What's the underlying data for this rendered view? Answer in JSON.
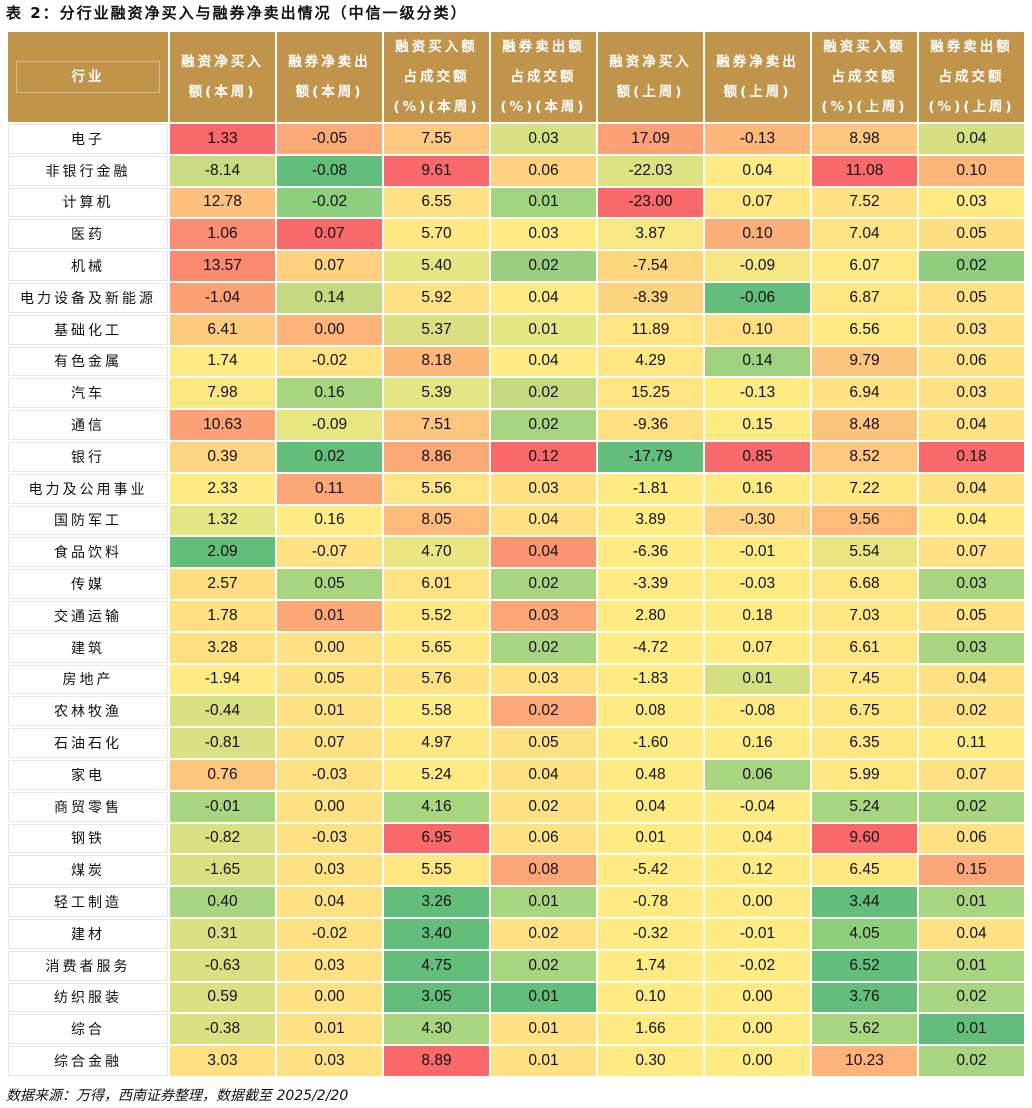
{
  "title": "表 2：分行业融资净买入与融券净卖出情况（中信一级分类）",
  "headers": [
    [
      "行业"
    ],
    [
      "融资净买入",
      "额(本周)"
    ],
    [
      "融券净卖出",
      "额(本周)"
    ],
    [
      "融资买入额",
      "占成交额",
      "(%)(本周)"
    ],
    [
      "融券卖出额",
      "占成交额",
      "(%)(本周)"
    ],
    [
      "融资净买入",
      "额(上周)"
    ],
    [
      "融券净卖出",
      "额(上周)"
    ],
    [
      "融资买入额",
      "占成交额",
      "(%)(上周)"
    ],
    [
      "融券卖出额",
      "占成交额",
      "(%)(上周)"
    ]
  ],
  "rows": [
    [
      "电子",
      "1.33",
      "-0.05",
      "7.55",
      "0.03",
      "17.09",
      "-0.13",
      "8.98",
      "0.04"
    ],
    [
      "非银行金融",
      "-8.14",
      "-0.08",
      "9.61",
      "0.06",
      "-22.03",
      "0.04",
      "11.08",
      "0.10"
    ],
    [
      "计算机",
      "12.78",
      "-0.02",
      "6.55",
      "0.01",
      "-23.00",
      "0.07",
      "7.52",
      "0.03"
    ],
    [
      "医药",
      "1.06",
      "0.07",
      "5.70",
      "0.03",
      "3.87",
      "0.10",
      "7.04",
      "0.05"
    ],
    [
      "机械",
      "13.57",
      "0.07",
      "5.40",
      "0.02",
      "-7.54",
      "-0.09",
      "6.07",
      "0.02"
    ],
    [
      "电力设备及新能源",
      "-1.04",
      "0.14",
      "5.92",
      "0.04",
      "-8.39",
      "-0.06",
      "6.87",
      "0.05"
    ],
    [
      "基础化工",
      "6.41",
      "0.00",
      "5.37",
      "0.01",
      "11.89",
      "0.10",
      "6.56",
      "0.03"
    ],
    [
      "有色金属",
      "1.74",
      "-0.02",
      "8.18",
      "0.04",
      "4.29",
      "0.14",
      "9.79",
      "0.06"
    ],
    [
      "汽车",
      "7.98",
      "0.16",
      "5.39",
      "0.02",
      "15.25",
      "-0.13",
      "6.94",
      "0.03"
    ],
    [
      "通信",
      "10.63",
      "-0.09",
      "7.51",
      "0.02",
      "-9.36",
      "0.15",
      "8.48",
      "0.04"
    ],
    [
      "银行",
      "0.39",
      "0.02",
      "8.86",
      "0.12",
      "-17.79",
      "0.85",
      "8.52",
      "0.18"
    ],
    [
      "电力及公用事业",
      "2.33",
      "0.11",
      "5.56",
      "0.03",
      "-1.81",
      "0.16",
      "7.22",
      "0.04"
    ],
    [
      "国防军工",
      "1.32",
      "0.16",
      "8.05",
      "0.04",
      "3.89",
      "-0.30",
      "9.56",
      "0.04"
    ],
    [
      "食品饮料",
      "2.09",
      "-0.07",
      "4.70",
      "0.04",
      "-6.36",
      "-0.01",
      "5.54",
      "0.07"
    ],
    [
      "传媒",
      "2.57",
      "0.05",
      "6.01",
      "0.02",
      "-3.39",
      "-0.03",
      "6.68",
      "0.03"
    ],
    [
      "交通运输",
      "1.78",
      "0.01",
      "5.52",
      "0.03",
      "2.80",
      "0.18",
      "7.03",
      "0.05"
    ],
    [
      "建筑",
      "3.28",
      "0.00",
      "5.65",
      "0.02",
      "-4.72",
      "0.07",
      "6.61",
      "0.03"
    ],
    [
      "房地产",
      "-1.94",
      "0.05",
      "5.76",
      "0.03",
      "-1.83",
      "0.01",
      "7.45",
      "0.04"
    ],
    [
      "农林牧渔",
      "-0.44",
      "0.01",
      "5.58",
      "0.02",
      "0.08",
      "-0.08",
      "6.75",
      "0.02"
    ],
    [
      "石油石化",
      "-0.81",
      "0.07",
      "4.97",
      "0.05",
      "-1.60",
      "0.16",
      "6.35",
      "0.11"
    ],
    [
      "家电",
      "0.76",
      "-0.03",
      "5.24",
      "0.04",
      "0.48",
      "0.06",
      "5.99",
      "0.07"
    ],
    [
      "商贸零售",
      "-0.01",
      "0.00",
      "4.16",
      "0.02",
      "0.04",
      "-0.04",
      "5.24",
      "0.02"
    ],
    [
      "钢铁",
      "-0.82",
      "-0.03",
      "6.95",
      "0.06",
      "0.01",
      "0.04",
      "9.60",
      "0.06"
    ],
    [
      "煤炭",
      "-1.65",
      "0.03",
      "5.55",
      "0.08",
      "-5.42",
      "0.12",
      "6.45",
      "0.15"
    ],
    [
      "轻工制造",
      "0.40",
      "0.04",
      "3.26",
      "0.01",
      "-0.78",
      "0.00",
      "3.44",
      "0.01"
    ],
    [
      "建材",
      "0.31",
      "-0.02",
      "3.40",
      "0.02",
      "-0.32",
      "-0.01",
      "4.05",
      "0.04"
    ],
    [
      "消费者服务",
      "-0.63",
      "0.03",
      "4.75",
      "0.02",
      "1.74",
      "-0.02",
      "6.52",
      "0.01"
    ],
    [
      "纺织服装",
      "0.59",
      "0.00",
      "3.05",
      "0.01",
      "0.10",
      "0.00",
      "3.76",
      "0.02"
    ],
    [
      "综合",
      "-0.38",
      "0.01",
      "4.30",
      "0.01",
      "1.66",
      "0.00",
      "5.62",
      "0.01"
    ],
    [
      "综合金融",
      "3.03",
      "0.03",
      "8.89",
      "0.01",
      "0.30",
      "0.00",
      "10.23",
      "0.02"
    ]
  ],
  "cell_colors": [
    [
      "#F8696B",
      "#FBAA77",
      "#FEC97F",
      "#D8E182",
      "#FBA175",
      "#FCB87A",
      "#FDC57D",
      "#D6E082"
    ],
    [
      "#C9DC81",
      "#63BE7B",
      "#F8696B",
      "#FDD17F",
      "#DBE282",
      "#FFEB84",
      "#F8696B",
      "#FCB67A"
    ],
    [
      "#FDC17D",
      "#8ECF7E",
      "#FEE182",
      "#A3D57F",
      "#F8696B",
      "#FEE783",
      "#FEE182",
      "#FFEB84"
    ],
    [
      "#FA8E72",
      "#F8696B",
      "#FFE884",
      "#FFEB84",
      "#F7E883",
      "#FBAF78",
      "#FEE383",
      "#FEDE82"
    ],
    [
      "#FA8971",
      "#FDD17F",
      "#E4E583",
      "#9ACF7F",
      "#FDD57F",
      "#F4E784",
      "#FFEB84",
      "#8FCC7E"
    ],
    [
      "#FBA175",
      "#C3DA81",
      "#FEE182",
      "#FFEB84",
      "#FCD47F",
      "#63BE7B",
      "#FEE783",
      "#FEE182"
    ],
    [
      "#FDCA7E",
      "#FDB379",
      "#D8E082",
      "#E4E583",
      "#FEE482",
      "#FFDF82",
      "#FEE983",
      "#FEE183"
    ],
    [
      "#FFEB84",
      "#FEE383",
      "#FCB779",
      "#FFEB84",
      "#FEE683",
      "#9ED27F",
      "#FDC47D",
      "#FEE182"
    ],
    [
      "#FEE683",
      "#A8D580",
      "#E4E583",
      "#C3DA81",
      "#FEE582",
      "#FFEB84",
      "#FEE283",
      "#FEE182"
    ],
    [
      "#FBA174",
      "#E8E583",
      "#FDC57D",
      "#A9D480",
      "#FEE081",
      "#FFEB84",
      "#FDC47D",
      "#FEE182"
    ],
    [
      "#FDD480",
      "#63BE7B",
      "#FBAA77",
      "#F8696B",
      "#63BE7B",
      "#F8696B",
      "#FDC77D",
      "#F8696B"
    ],
    [
      "#FFEB84",
      "#FBA877",
      "#FEE482",
      "#FEE182",
      "#FFEB84",
      "#FFEB84",
      "#FEE783",
      "#FEE182"
    ],
    [
      "#E4E583",
      "#FFEB84",
      "#FDBB7B",
      "#FEE182",
      "#FFEB84",
      "#FDD17F",
      "#FDBB7B",
      "#FFEB84"
    ],
    [
      "#63BE7B",
      "#FEE182",
      "#EAE683",
      "#FA9472",
      "#FFEB84",
      "#FFEB84",
      "#E9E683",
      "#FEE182"
    ],
    [
      "#FEDE81",
      "#A9D480",
      "#FEE383",
      "#A9D480",
      "#FFEB84",
      "#FEEA83",
      "#FEE683",
      "#A9D480"
    ],
    [
      "#FEE081",
      "#FBA877",
      "#FEE683",
      "#FBA677",
      "#FFEB84",
      "#FFEB84",
      "#FEE783",
      "#FEE182"
    ],
    [
      "#FEE081",
      "#FEE182",
      "#FEE683",
      "#A9D480",
      "#FFEB84",
      "#FFEB84",
      "#FEE683",
      "#A9D480"
    ],
    [
      "#FFEB84",
      "#FEE182",
      "#FEE183",
      "#FEE182",
      "#FFEB84",
      "#D3DF82",
      "#FEE683",
      "#FEE182"
    ],
    [
      "#D8E082",
      "#FEE182",
      "#FFEB84",
      "#FBAA77",
      "#FFEB84",
      "#FFEB84",
      "#FEE683",
      "#FEE182"
    ],
    [
      "#D8E082",
      "#FEE182",
      "#FEE683",
      "#FEE182",
      "#FFEB84",
      "#FFEB84",
      "#FEE683",
      "#FFEB84"
    ],
    [
      "#FDC67D",
      "#FEE182",
      "#FFEB84",
      "#FEE182",
      "#FFEB84",
      "#A9D480",
      "#FEE683",
      "#FEE182"
    ],
    [
      "#A9D480",
      "#FEE182",
      "#A9D480",
      "#FEE182",
      "#FFEB84",
      "#FFEB84",
      "#A9D480",
      "#A9D480"
    ],
    [
      "#D8E082",
      "#FEE182",
      "#F8696B",
      "#FEE182",
      "#FFEB84",
      "#FFEB84",
      "#F8696B",
      "#FEE182"
    ],
    [
      "#D8E082",
      "#FEE182",
      "#FEE683",
      "#FBA677",
      "#FFEB84",
      "#FFEB84",
      "#FEE683",
      "#FBA677"
    ],
    [
      "#A9D480",
      "#FEE182",
      "#63BE7B",
      "#A9D480",
      "#FFEB84",
      "#FFEB84",
      "#63BE7B",
      "#A9D480"
    ],
    [
      "#D8E082",
      "#FEE182",
      "#63BE7B",
      "#FEE182",
      "#FFEB84",
      "#FFEB84",
      "#8ECF7E",
      "#FEE182"
    ],
    [
      "#D8E082",
      "#FEE182",
      "#63BE7B",
      "#A9D480",
      "#FFEB84",
      "#FFEB84",
      "#63BE7B",
      "#A9D480"
    ],
    [
      "#D8E082",
      "#FEE182",
      "#63BE7B",
      "#63BE7B",
      "#FFEB84",
      "#FFEB84",
      "#63BE7B",
      "#A9D480"
    ],
    [
      "#D8E082",
      "#FEE182",
      "#A9D480",
      "#FEE182",
      "#FFEB84",
      "#FFEB84",
      "#A9D480",
      "#63BE7B"
    ],
    [
      "#FEE081",
      "#FEE182",
      "#F8696B",
      "#FEE182",
      "#FFEB84",
      "#FFEB84",
      "#FDB379",
      "#A9D480"
    ]
  ],
  "source": "数据来源：万得，西南证券整理，数据截至 2025/2/20"
}
